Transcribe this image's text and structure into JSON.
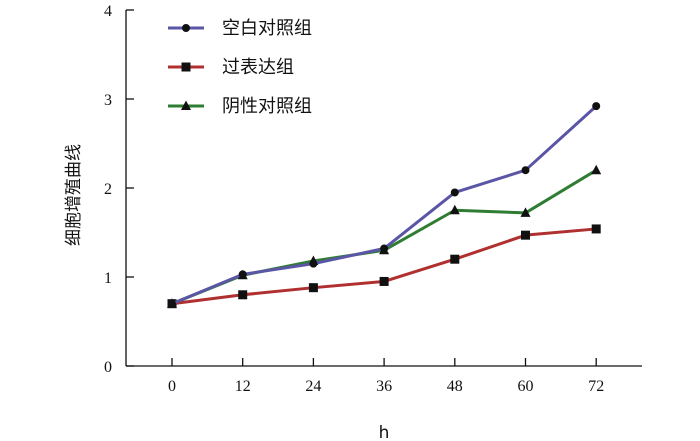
{
  "chart_data": {
    "type": "line",
    "categories": [
      "0",
      "12",
      "24",
      "36",
      "48",
      "60",
      "72"
    ],
    "x": [
      0,
      12,
      24,
      36,
      48,
      60,
      72
    ],
    "xlabel": "h",
    "ylabel": "细胞增殖曲线",
    "ylim": [
      0,
      4
    ],
    "yticks": [
      "0",
      "1",
      "2",
      "3",
      "4"
    ],
    "grid": false,
    "legend_position": "top-left",
    "series": [
      {
        "name": "空白对照组",
        "color": "#5a55a5",
        "marker": "circle",
        "values": [
          0.7,
          1.03,
          1.15,
          1.32,
          1.95,
          2.2,
          2.92
        ]
      },
      {
        "name": "过表达组",
        "color": "#b03030",
        "marker": "square",
        "values": [
          0.7,
          0.8,
          0.88,
          0.95,
          1.2,
          1.47,
          1.54
        ]
      },
      {
        "name": "阴性对照组",
        "color": "#2e7d32",
        "marker": "triangle",
        "values": [
          0.7,
          1.02,
          1.18,
          1.3,
          1.75,
          1.72,
          2.2
        ]
      }
    ]
  }
}
